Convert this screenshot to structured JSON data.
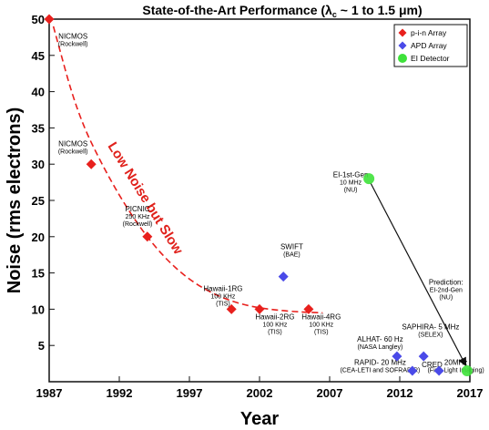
{
  "chart_data": {
    "type": "scatter",
    "title": "State-of-the-Art Performance (λ",
    "title_sub": "c",
    "title_rest": " ~ 1 to 1.5 μm)",
    "xlabel": "Year",
    "ylabel": "Noise (rms electrons)",
    "xlim": [
      1987,
      2017
    ],
    "ylim": [
      0,
      50
    ],
    "xticks": [
      1987,
      1992,
      1997,
      2002,
      2007,
      2012,
      2017
    ],
    "yticks": [
      5,
      10,
      15,
      20,
      25,
      30,
      35,
      40,
      45,
      50
    ],
    "legend_position": "top-right",
    "series": [
      {
        "name": "p-i-n Array",
        "color": "#e8201d",
        "marker": "diamond",
        "points": [
          {
            "x": 1987,
            "y": 50
          },
          {
            "x": 1990,
            "y": 30
          },
          {
            "x": 1994,
            "y": 20
          },
          {
            "x": 2000,
            "y": 10
          },
          {
            "x": 2002,
            "y": 10
          },
          {
            "x": 2005.5,
            "y": 10
          }
        ]
      },
      {
        "name": "APD Array",
        "color": "#4a4ae8",
        "marker": "diamond",
        "points": [
          {
            "x": 2003.7,
            "y": 14.5
          },
          {
            "x": 2011.8,
            "y": 3.5
          },
          {
            "x": 2013.7,
            "y": 3.5
          },
          {
            "x": 2012.9,
            "y": 1.5
          },
          {
            "x": 2014.8,
            "y": 1.5
          }
        ]
      },
      {
        "name": "EI Detector",
        "color": "#3ee23a",
        "marker": "circle",
        "points": [
          {
            "x": 2009.8,
            "y": 28
          },
          {
            "x": 2016.8,
            "y": 1.5
          }
        ]
      }
    ],
    "trend": {
      "label": "Low Noise but Slow",
      "color": "#e8201d",
      "points": [
        [
          1987.3,
          49
        ],
        [
          1989,
          37
        ],
        [
          1991,
          29
        ],
        [
          1993,
          22.5
        ],
        [
          1995,
          17.5
        ],
        [
          1997,
          14
        ],
        [
          1999,
          11.8
        ],
        [
          2001,
          10.5
        ],
        [
          2003,
          9.9
        ],
        [
          2005,
          9.6
        ],
        [
          2006.5,
          9.5
        ]
      ]
    },
    "arrow": {
      "from": [
        2009.8,
        28
      ],
      "to": [
        2016.8,
        1.5
      ]
    },
    "annotations": [
      {
        "lines": [
          "NICMOS",
          "(Rockwell)"
        ],
        "x": 1988.7,
        "y": 47.3
      },
      {
        "lines": [
          "NICMOS",
          "(Rockwell)"
        ],
        "x": 1988.7,
        "y": 32.5
      },
      {
        "lines": [
          "PICNIC",
          "250 KHz",
          "(Rockwell)"
        ],
        "x": 1993.3,
        "y": 23.5
      },
      {
        "lines": [
          "Hawaii-1RG",
          "100 KHz",
          "(TIS)"
        ],
        "x": 1999.4,
        "y": 12.5
      },
      {
        "lines": [
          "Hawaii-2RG",
          "100 KHz",
          "(TIS)"
        ],
        "x": 2003.1,
        "y": 8.6
      },
      {
        "lines": [
          "Hawaii-4RG",
          "100 KHz",
          "(TIS)"
        ],
        "x": 2006.4,
        "y": 8.6
      },
      {
        "lines": [
          "SWIFT",
          "(BAE)"
        ],
        "x": 2004.3,
        "y": 18.3
      },
      {
        "lines": [
          "EI-1st-Gen",
          "10 MHz",
          "(NU)"
        ],
        "x": 2008.5,
        "y": 28.2
      },
      {
        "lines": [
          "Prediction:",
          "EI-2nd-Gen",
          "(NU)"
        ],
        "x": 2015.3,
        "y": 13.4
      },
      {
        "lines": [
          "ALHAT- 60 Hz",
          "(NASA Langley)"
        ],
        "x": 2010.6,
        "y": 5.5
      },
      {
        "lines": [
          "SAPHIRA- 5 MHz",
          "(SELEX)"
        ],
        "x": 2014.2,
        "y": 7.2
      },
      {
        "lines": [
          "RAPID- 20 MHz",
          "(CEA-LETI and SOFRADIR)"
        ],
        "x": 2010.6,
        "y": 2.3
      },
      {
        "lines": [
          "CRED"
        ],
        "x": 2014.3,
        "y": 2.0
      },
      {
        "lines": [
          "20MHz",
          "(First Light Imaging)"
        ],
        "x": 2016.0,
        "y": 2.3
      }
    ]
  }
}
